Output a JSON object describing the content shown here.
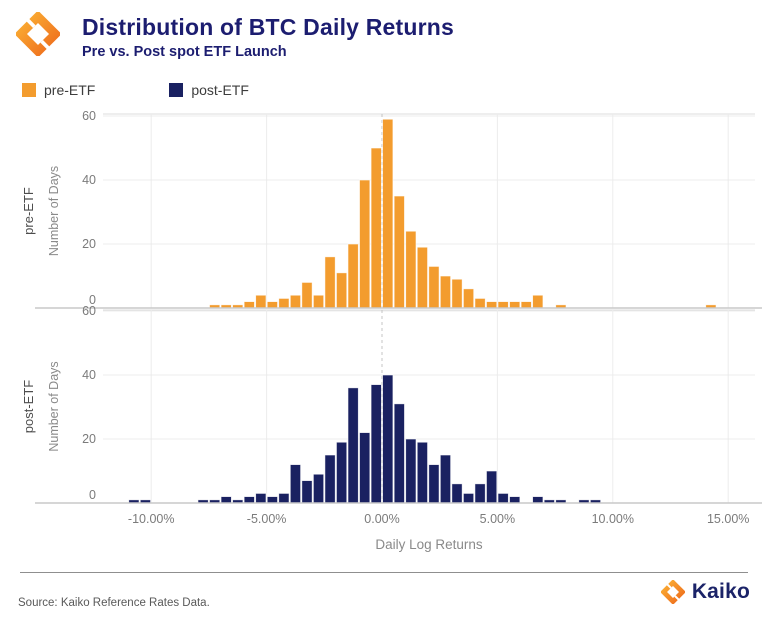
{
  "header": {
    "title": "Distribution of BTC Daily Returns",
    "subtitle": "Pre vs. Post spot ETF Launch"
  },
  "legend": {
    "items": [
      {
        "label": "pre-ETF",
        "color": "#F39C2E"
      },
      {
        "label": "post-ETF",
        "color": "#1A2161"
      }
    ]
  },
  "brand_colors": {
    "accent_orange": "#F39C2E",
    "navy": "#1A2161",
    "title_navy": "#1C1D70"
  },
  "chart_data": {
    "type": "bar",
    "subtype": "histogram",
    "title": "Distribution of BTC Daily Returns",
    "subtitle": "Pre vs. Post spot ETF Launch",
    "xlabel": "Daily Log Returns",
    "ylabel": "Number of Days",
    "legend_position": "top-left",
    "grid": true,
    "bin_width_pct": 0.5,
    "xlim": [
      -12.1,
      16.2
    ],
    "ylim": [
      0,
      61
    ],
    "y_ticks": [
      0,
      20,
      40,
      60
    ],
    "x_ticks": [
      {
        "value": -10,
        "label": "-10.00%"
      },
      {
        "value": -5,
        "label": "-5.00%"
      },
      {
        "value": 0,
        "label": "0.00%"
      },
      {
        "value": 5,
        "label": "5.00%"
      },
      {
        "value": 10,
        "label": "10.00%"
      },
      {
        "value": 15,
        "label": "15.00%"
      }
    ],
    "zero_line_style": "dashed",
    "series": [
      {
        "name": "pre-ETF",
        "row_label": "pre-ETF",
        "color": "#F39C2E",
        "bins": [
          [
            -7.5,
            1
          ],
          [
            -7,
            1
          ],
          [
            -6.5,
            1
          ],
          [
            -6,
            2
          ],
          [
            -5.5,
            4
          ],
          [
            -5,
            2
          ],
          [
            -4.5,
            3
          ],
          [
            -4,
            4
          ],
          [
            -3.5,
            8
          ],
          [
            -3,
            4
          ],
          [
            -2.5,
            16
          ],
          [
            -2,
            11
          ],
          [
            -1.5,
            20
          ],
          [
            -1,
            40
          ],
          [
            -0.5,
            50
          ],
          [
            0,
            59
          ],
          [
            0.5,
            35
          ],
          [
            1,
            24
          ],
          [
            1.5,
            19
          ],
          [
            2,
            13
          ],
          [
            2.5,
            10
          ],
          [
            3,
            9
          ],
          [
            3.5,
            6
          ],
          [
            4,
            3
          ],
          [
            4.5,
            2
          ],
          [
            5,
            2
          ],
          [
            5.5,
            2
          ],
          [
            6,
            2
          ],
          [
            6.5,
            4
          ],
          [
            7.5,
            1
          ],
          [
            14,
            1
          ]
        ]
      },
      {
        "name": "post-ETF",
        "row_label": "post-ETF",
        "color": "#1A2161",
        "bins": [
          [
            -11,
            1
          ],
          [
            -10.5,
            1
          ],
          [
            -8,
            1
          ],
          [
            -7.5,
            1
          ],
          [
            -7,
            2
          ],
          [
            -6.5,
            1
          ],
          [
            -6,
            2
          ],
          [
            -5.5,
            3
          ],
          [
            -5,
            2
          ],
          [
            -4.5,
            3
          ],
          [
            -4,
            12
          ],
          [
            -3.5,
            7
          ],
          [
            -3,
            9
          ],
          [
            -2.5,
            15
          ],
          [
            -2,
            19
          ],
          [
            -1.5,
            36
          ],
          [
            -1,
            22
          ],
          [
            -0.5,
            37
          ],
          [
            0,
            40
          ],
          [
            0.5,
            31
          ],
          [
            1,
            20
          ],
          [
            1.5,
            19
          ],
          [
            2,
            12
          ],
          [
            2.5,
            15
          ],
          [
            3,
            6
          ],
          [
            3.5,
            3
          ],
          [
            4,
            6
          ],
          [
            4.5,
            10
          ],
          [
            5,
            3
          ],
          [
            5.5,
            2
          ],
          [
            6.5,
            2
          ],
          [
            7,
            1
          ],
          [
            7.5,
            1
          ],
          [
            8.5,
            1
          ],
          [
            9,
            1
          ]
        ]
      }
    ]
  },
  "footer": {
    "source": "Source: Kaiko Reference Rates Data.",
    "brand": "Kaiko"
  }
}
